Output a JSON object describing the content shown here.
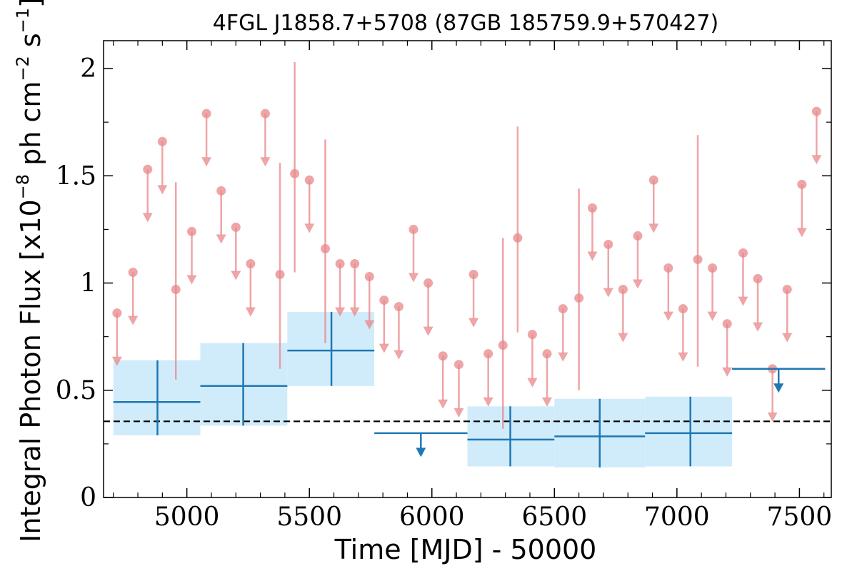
{
  "chart_data": {
    "type": "scatter",
    "title": "4FGL J1858.7+5708 (87GB 185759.9+570427)",
    "xlabel": "Time [MJD] - 50000",
    "ylabel": "Integral Photon Flux [x10",
    "ylabel_exp1": "−8",
    "ylabel_mid": " ph cm",
    "ylabel_exp2": "−2",
    "ylabel_mid2": " s",
    "ylabel_exp3": "−1",
    "ylabel_end": "]",
    "xlim": [
      4660,
      7630
    ],
    "ylim": [
      0,
      2.13
    ],
    "x_ticks": [
      {
        "value": 5000,
        "label": "5000"
      },
      {
        "value": 5500,
        "label": "5500"
      },
      {
        "value": 6000,
        "label": "6000"
      },
      {
        "value": 6500,
        "label": "6500"
      },
      {
        "value": 7000,
        "label": "7000"
      },
      {
        "value": 7500,
        "label": "7500"
      }
    ],
    "y_ticks": [
      {
        "value": 0,
        "label": "0"
      },
      {
        "value": 0.5,
        "label": "0.5"
      },
      {
        "value": 1,
        "label": "1"
      },
      {
        "value": 1.5,
        "label": "1.5"
      },
      {
        "value": 2,
        "label": "2"
      }
    ],
    "grid": false,
    "reference_level": 0.355,
    "colors": {
      "short_points": "#e8878a",
      "long_bins": "#1f77b4",
      "long_bin_band": "#d0ecfb",
      "reference_line": "#000000"
    },
    "short_bins": {
      "detections": [
        {
          "x": 4955,
          "y": 0.97,
          "ylow": 0.55,
          "yhigh": 1.47
        },
        {
          "x": 5380,
          "y": 1.04,
          "ylow": 0.6,
          "yhigh": 1.56
        },
        {
          "x": 5440,
          "y": 1.51,
          "ylow": 1.05,
          "yhigh": 2.03
        },
        {
          "x": 5565,
          "y": 1.16,
          "ylow": 0.72,
          "yhigh": 1.67
        },
        {
          "x": 6290,
          "y": 0.71,
          "ylow": 0.32,
          "yhigh": 1.21
        },
        {
          "x": 6350,
          "y": 1.21,
          "ylow": 0.77,
          "yhigh": 1.73
        },
        {
          "x": 6600,
          "y": 0.93,
          "ylow": 0.5,
          "yhigh": 1.44
        },
        {
          "x": 7085,
          "y": 1.11,
          "ylow": 0.61,
          "yhigh": 1.69
        }
      ],
      "upper_limits": [
        {
          "x": 4715,
          "y": 0.86,
          "arrow_to": 0.62
        },
        {
          "x": 4780,
          "y": 1.05,
          "arrow_to": 0.81
        },
        {
          "x": 4840,
          "y": 1.53,
          "arrow_to": 1.29
        },
        {
          "x": 4900,
          "y": 1.66,
          "arrow_to": 1.42
        },
        {
          "x": 5020,
          "y": 1.24,
          "arrow_to": 1.0
        },
        {
          "x": 5080,
          "y": 1.79,
          "arrow_to": 1.55
        },
        {
          "x": 5140,
          "y": 1.43,
          "arrow_to": 1.19
        },
        {
          "x": 5200,
          "y": 1.26,
          "arrow_to": 1.02
        },
        {
          "x": 5260,
          "y": 1.09,
          "arrow_to": 0.85
        },
        {
          "x": 5320,
          "y": 1.79,
          "arrow_to": 1.55
        },
        {
          "x": 5500,
          "y": 1.48,
          "arrow_to": 1.24
        },
        {
          "x": 5625,
          "y": 1.09,
          "arrow_to": 0.85
        },
        {
          "x": 5685,
          "y": 1.09,
          "arrow_to": 0.85
        },
        {
          "x": 5745,
          "y": 1.03,
          "arrow_to": 0.79
        },
        {
          "x": 5805,
          "y": 0.92,
          "arrow_to": 0.68
        },
        {
          "x": 5865,
          "y": 0.89,
          "arrow_to": 0.65
        },
        {
          "x": 5925,
          "y": 1.25,
          "arrow_to": 1.01
        },
        {
          "x": 5985,
          "y": 1.0,
          "arrow_to": 0.76
        },
        {
          "x": 6045,
          "y": 0.66,
          "arrow_to": 0.42
        },
        {
          "x": 6110,
          "y": 0.62,
          "arrow_to": 0.38
        },
        {
          "x": 6170,
          "y": 1.04,
          "arrow_to": 0.8
        },
        {
          "x": 6230,
          "y": 0.67,
          "arrow_to": 0.43
        },
        {
          "x": 6410,
          "y": 0.76,
          "arrow_to": 0.52
        },
        {
          "x": 6470,
          "y": 0.67,
          "arrow_to": 0.43
        },
        {
          "x": 6535,
          "y": 0.88,
          "arrow_to": 0.64
        },
        {
          "x": 6655,
          "y": 1.35,
          "arrow_to": 1.11
        },
        {
          "x": 6720,
          "y": 1.18,
          "arrow_to": 0.94
        },
        {
          "x": 6780,
          "y": 0.97,
          "arrow_to": 0.73
        },
        {
          "x": 6840,
          "y": 1.22,
          "arrow_to": 0.98
        },
        {
          "x": 6905,
          "y": 1.48,
          "arrow_to": 1.24
        },
        {
          "x": 6965,
          "y": 1.07,
          "arrow_to": 0.83
        },
        {
          "x": 7025,
          "y": 0.88,
          "arrow_to": 0.64
        },
        {
          "x": 7145,
          "y": 1.07,
          "arrow_to": 0.83
        },
        {
          "x": 7205,
          "y": 0.81,
          "arrow_to": 0.57
        },
        {
          "x": 7270,
          "y": 1.14,
          "arrow_to": 0.9
        },
        {
          "x": 7330,
          "y": 1.02,
          "arrow_to": 0.78
        },
        {
          "x": 7390,
          "y": 0.6,
          "arrow_to": 0.36
        },
        {
          "x": 7450,
          "y": 0.97,
          "arrow_to": 0.73
        },
        {
          "x": 7510,
          "y": 1.46,
          "arrow_to": 1.22
        },
        {
          "x": 7570,
          "y": 1.8,
          "arrow_to": 1.56
        }
      ]
    },
    "long_bins": {
      "detections": [
        {
          "x": 4880,
          "x0": 4700,
          "x1": 5055,
          "y": 0.445,
          "ylow": 0.29,
          "yhigh": 0.64
        },
        {
          "x": 5230,
          "x0": 5055,
          "x1": 5410,
          "y": 0.52,
          "ylow": 0.335,
          "yhigh": 0.72
        },
        {
          "x": 5590,
          "x0": 5410,
          "x1": 5765,
          "y": 0.685,
          "ylow": 0.52,
          "yhigh": 0.865
        },
        {
          "x": 6320,
          "x0": 6145,
          "x1": 6500,
          "y": 0.27,
          "ylow": 0.145,
          "yhigh": 0.425
        },
        {
          "x": 6685,
          "x0": 6500,
          "x1": 6870,
          "y": 0.285,
          "ylow": 0.14,
          "yhigh": 0.46
        },
        {
          "x": 7055,
          "x0": 6870,
          "x1": 7225,
          "y": 0.3,
          "ylow": 0.145,
          "yhigh": 0.47
        }
      ],
      "upper_limits": [
        {
          "x": 5955,
          "x0": 5765,
          "x1": 6145,
          "y": 0.3,
          "arrow_to": 0.195
        },
        {
          "x": 7415,
          "x0": 7225,
          "x1": 7605,
          "y": 0.6,
          "arrow_to": 0.495
        }
      ]
    }
  }
}
